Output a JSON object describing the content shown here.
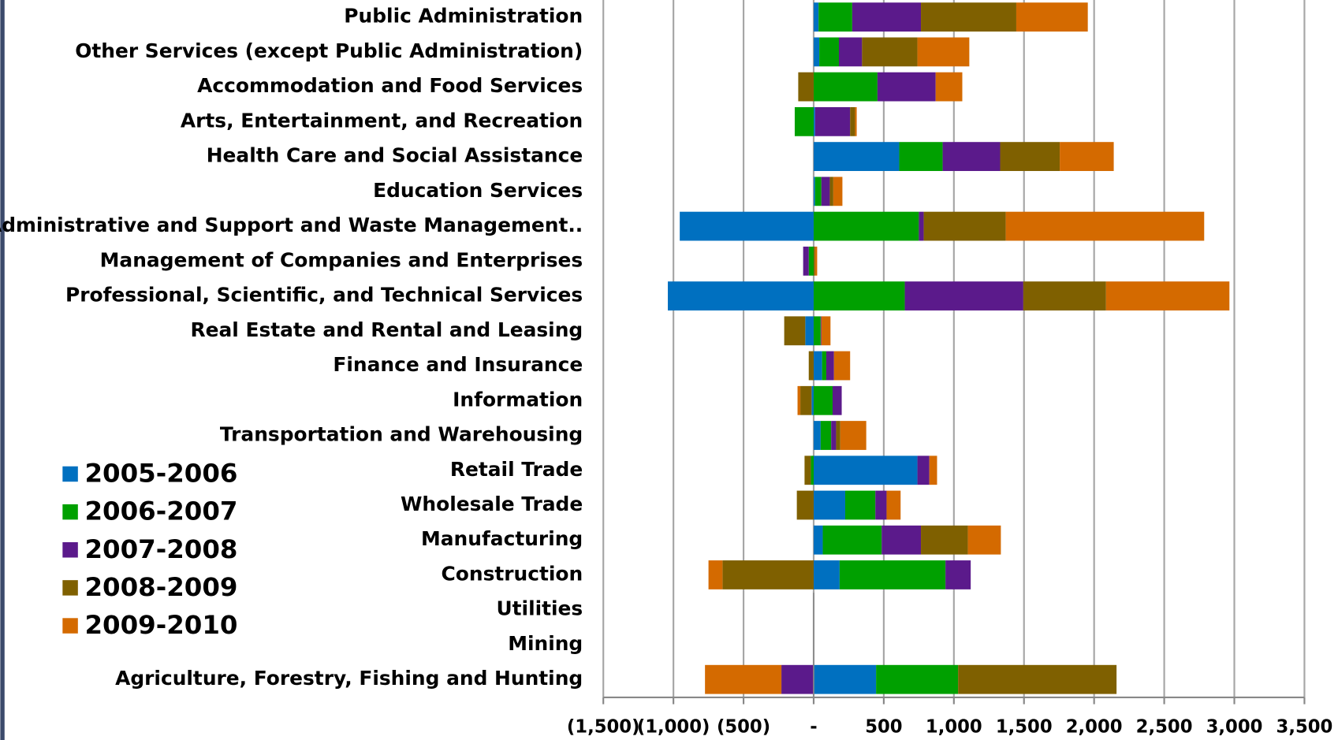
{
  "chart_data": {
    "type": "stacked-bar-horizontal",
    "categories": [
      "Agriculture, Forestry, Fishing and Hunting",
      "Mining",
      "Utilities",
      "Construction",
      "Manufacturing",
      "Wholesale Trade",
      "Retail Trade",
      "Transportation and Warehousing",
      "Information",
      "Finance and Insurance",
      "Real Estate and Rental and Leasing",
      "Professional, Scientific, and Technical Services",
      "Management of Companies and Enterprises",
      "Administrative and Support and Waste Management..",
      "Education Services",
      "Health Care and Social Assistance",
      "Arts, Entertainment, and Recreation",
      "Accommodation and Food Services",
      "Other Services (except Public Administration)",
      "Public Administration"
    ],
    "series": [
      {
        "name": "2005-2006",
        "color": "#0070c0",
        "values": [
          445,
          0,
          0,
          185,
          65,
          225,
          740,
          50,
          -15,
          60,
          -60,
          -1040,
          0,
          -955,
          10,
          610,
          10,
          0,
          40,
          35
        ]
      },
      {
        "name": "2006-2007",
        "color": "#00a000",
        "values": [
          585,
          0,
          0,
          755,
          420,
          215,
          -20,
          75,
          135,
          30,
          50,
          650,
          -35,
          750,
          45,
          310,
          -135,
          455,
          140,
          240
        ]
      },
      {
        "name": "2007-2008",
        "color": "#5b1a8b",
        "values": [
          -230,
          0,
          0,
          180,
          280,
          80,
          85,
          35,
          65,
          55,
          5,
          845,
          -40,
          35,
          60,
          410,
          250,
          415,
          165,
          490
        ]
      },
      {
        "name": "2008-2009",
        "color": "#7f6000",
        "values": [
          1130,
          0,
          0,
          -650,
          335,
          -120,
          -45,
          30,
          -80,
          -35,
          -150,
          590,
          10,
          585,
          25,
          425,
          35,
          -110,
          395,
          680
        ]
      },
      {
        "name": "2009-2010",
        "color": "#d46a00",
        "values": [
          -545,
          0,
          0,
          -100,
          235,
          100,
          55,
          185,
          -20,
          115,
          65,
          880,
          15,
          1415,
          65,
          385,
          12,
          190,
          370,
          510
        ]
      }
    ],
    "xlim": [
      -1500,
      3500
    ],
    "xticks": [
      {
        "value": -1500,
        "label": "(1,500)"
      },
      {
        "value": -1000,
        "label": "(1,000)"
      },
      {
        "value": -500,
        "label": "(500)"
      },
      {
        "value": 0,
        "label": "-"
      },
      500,
      {
        "value": 1000,
        "label": "1,000"
      },
      {
        "value": 1500,
        "label": "1,500"
      },
      {
        "value": 2000,
        "label": "2,000"
      },
      {
        "value": 2500,
        "label": "2,500"
      },
      {
        "value": 3000,
        "label": "3,000"
      },
      {
        "value": 3500,
        "label": "3,500"
      }
    ],
    "grid": true,
    "legend": "left"
  }
}
